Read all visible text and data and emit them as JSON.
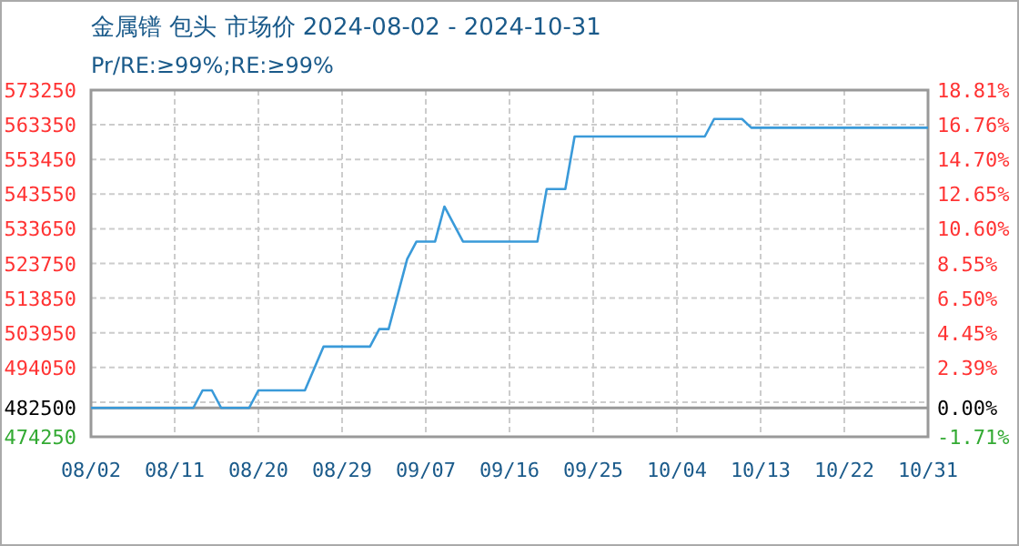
{
  "chart_data": {
    "type": "line",
    "title": "金属镨 包头 市场价 2024-08-02 - 2024-10-31",
    "subtitle": "Pr/RE:≥99%;RE:≥99%",
    "x": [
      "2024-08-02",
      "2024-08-13",
      "2024-08-14",
      "2024-08-15",
      "2024-08-16",
      "2024-08-19",
      "2024-08-20",
      "2024-08-25",
      "2024-08-26",
      "2024-08-27",
      "2024-09-01",
      "2024-09-02",
      "2024-09-03",
      "2024-09-04",
      "2024-09-05",
      "2024-09-06",
      "2024-09-08",
      "2024-09-09",
      "2024-09-11",
      "2024-09-19",
      "2024-09-20",
      "2024-09-22",
      "2024-09-23",
      "2024-10-07",
      "2024-10-08",
      "2024-10-11",
      "2024-10-12",
      "2024-10-31"
    ],
    "series": [
      {
        "color": "#3a9ad9",
        "values": [
          482500,
          482500,
          487500,
          487500,
          482500,
          482500,
          487500,
          487500,
          493750,
          500000,
          500000,
          505000,
          505000,
          515000,
          525000,
          530000,
          530000,
          540000,
          530000,
          530000,
          545000,
          545000,
          560000,
          560000,
          565000,
          565000,
          562500,
          562500
        ]
      }
    ],
    "xlim": [
      "2024-08-02",
      "2024-10-31"
    ],
    "xticks": [
      {
        "value": "2024-08-02",
        "label": "08/02"
      },
      {
        "value": "2024-08-11",
        "label": "08/11"
      },
      {
        "value": "2024-08-20",
        "label": "08/20"
      },
      {
        "value": "2024-08-29",
        "label": "08/29"
      },
      {
        "value": "2024-09-07",
        "label": "09/07"
      },
      {
        "value": "2024-09-16",
        "label": "09/16"
      },
      {
        "value": "2024-09-25",
        "label": "09/25"
      },
      {
        "value": "2024-10-04",
        "label": "10/04"
      },
      {
        "value": "2024-10-13",
        "label": "10/13"
      },
      {
        "value": "2024-10-22",
        "label": "10/22"
      },
      {
        "value": "2024-10-31",
        "label": "10/31"
      }
    ],
    "ylim": [
      474250,
      573250
    ],
    "yticks": [
      573250,
      563350,
      553450,
      543550,
      533650,
      523750,
      513850,
      503950,
      494050,
      {
        "value": 484150,
        "label": null
      },
      482500,
      474250
    ],
    "y2lim": [
      -1.71,
      18.81
    ],
    "y2ticks": [
      {
        "value": 18.81,
        "label": "18.81%"
      },
      {
        "value": 16.76,
        "label": "16.76%"
      },
      {
        "value": 14.7,
        "label": "14.70%"
      },
      {
        "value": 12.65,
        "label": "12.65%"
      },
      {
        "value": 10.6,
        "label": "10.60%"
      },
      {
        "value": 8.55,
        "label": "8.55%"
      },
      {
        "value": 6.5,
        "label": "6.50%"
      },
      {
        "value": 4.45,
        "label": "4.45%"
      },
      {
        "value": 2.39,
        "label": "2.39%"
      },
      {
        "value": 0,
        "label": "0.00%"
      },
      {
        "value": -1.71,
        "label": "-1.71%"
      }
    ],
    "ref_lines": [
      {
        "axis": "y",
        "value": 482500,
        "color": "#999999"
      }
    ],
    "grid": true,
    "marker": "none",
    "line_style": "solid"
  }
}
